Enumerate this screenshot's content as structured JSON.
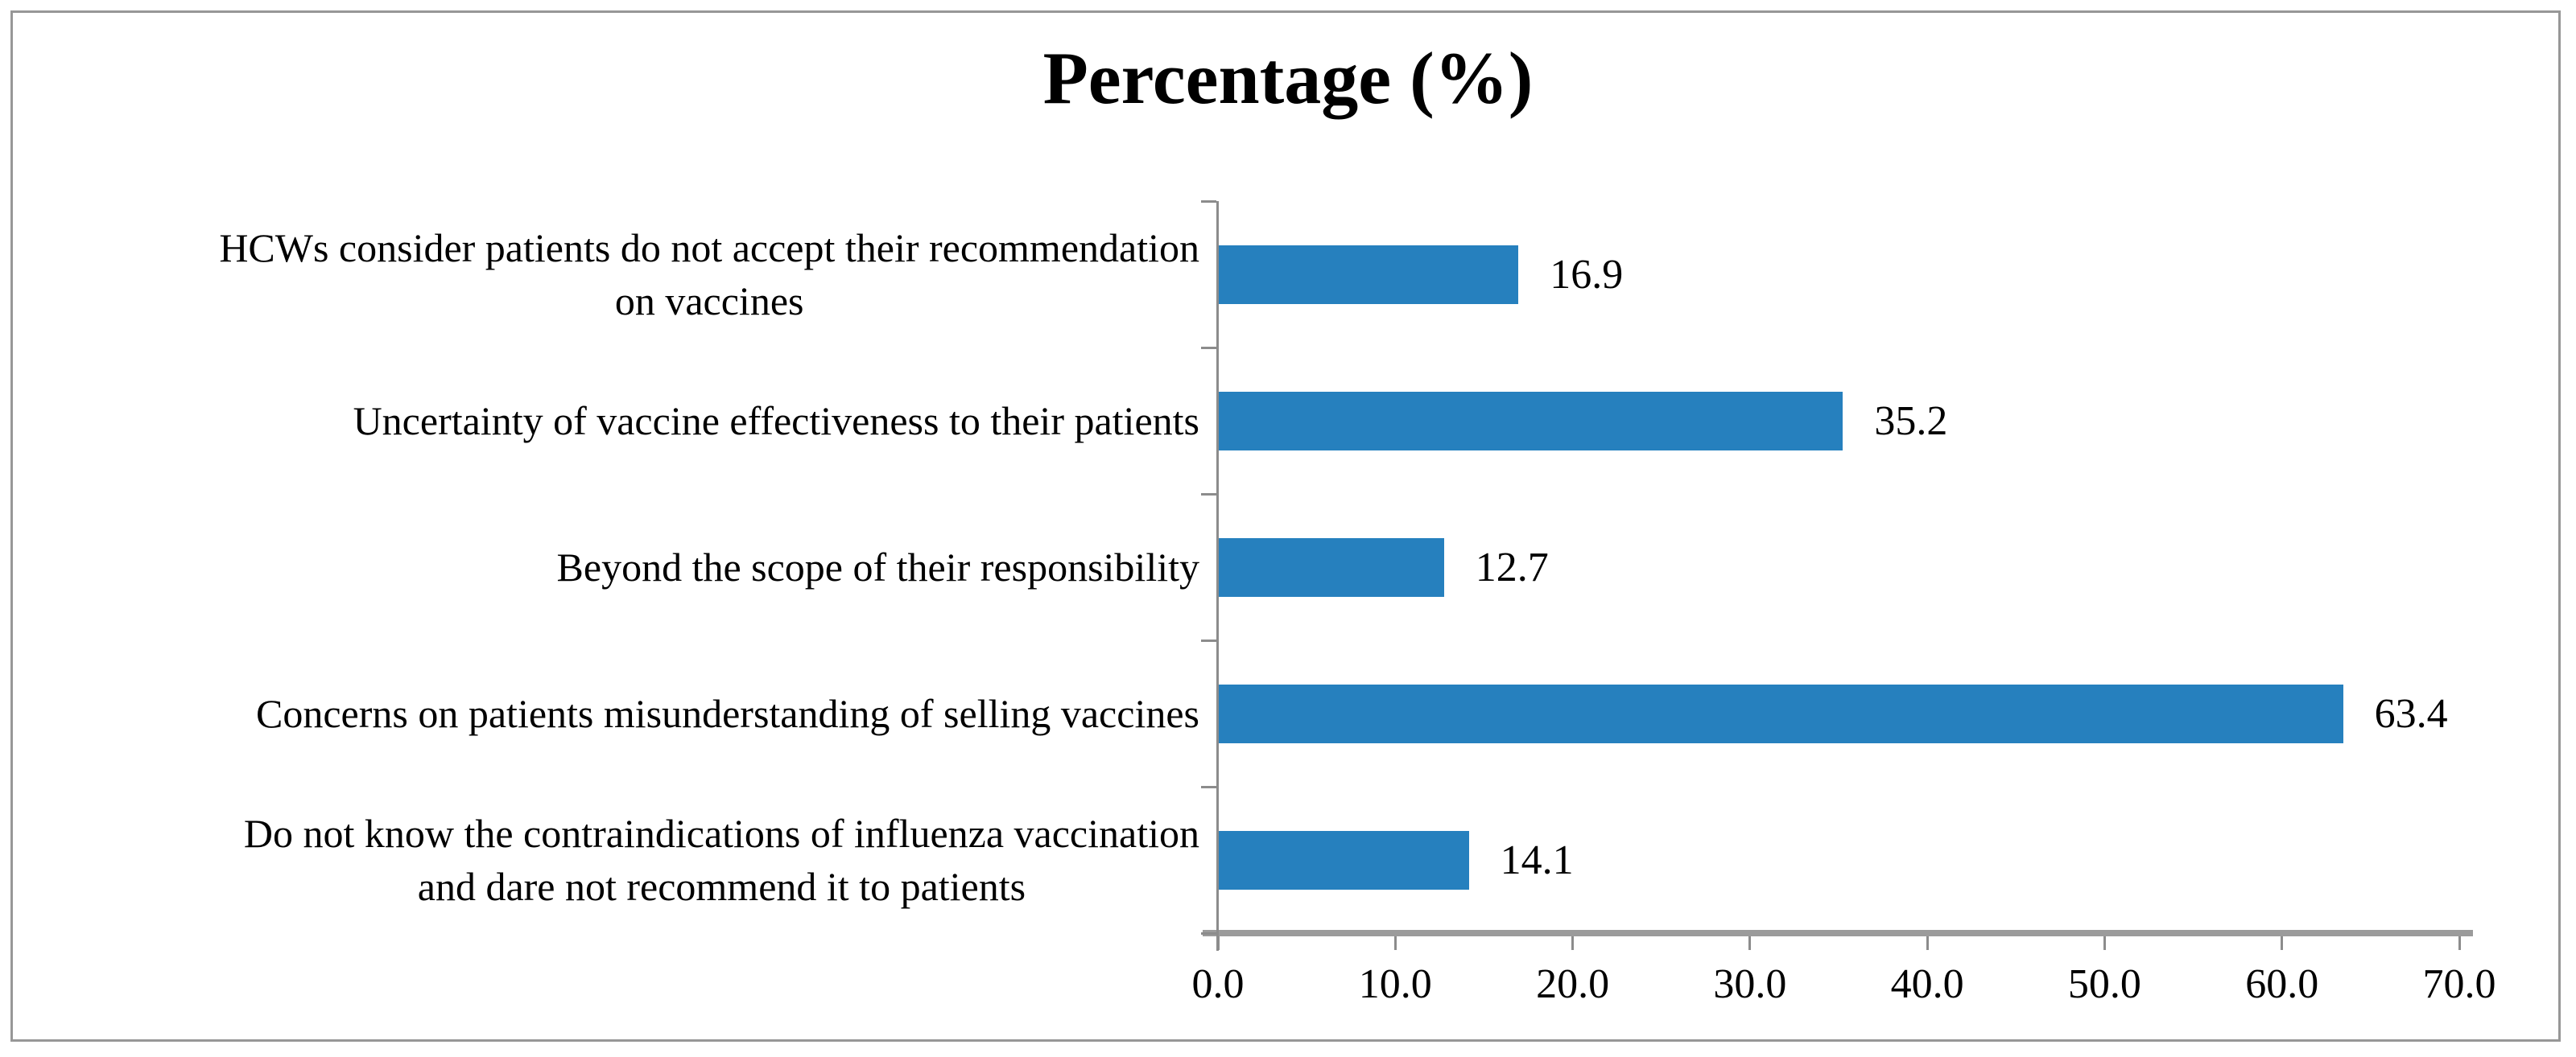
{
  "figure": {
    "background_color": "#ffffff",
    "border_color": "#979797"
  },
  "chart_data": {
    "type": "bar",
    "orientation": "horizontal",
    "title": "Percentage (%)",
    "xlabel": "",
    "ylabel": "",
    "xlim": [
      0,
      70
    ],
    "x_tick_labels": [
      "0.0",
      "10.0",
      "20.0",
      "30.0",
      "40.0",
      "50.0",
      "60.0",
      "70.0"
    ],
    "x_tick_values": [
      0,
      10,
      20,
      30,
      40,
      50,
      60,
      70
    ],
    "grid": false,
    "legend": "none",
    "data_labels_position": "outside-end",
    "bar_color": "#2680be",
    "axis_color": "#8c8c8c",
    "categories": [
      [
        "HCWs consider patients do not accept their recommendation",
        "on vaccines"
      ],
      [
        "Uncertainty of vaccine effectiveness to their patients"
      ],
      [
        "Beyond the scope of their responsibility"
      ],
      [
        "Concerns on patients misunderstanding of selling vaccines"
      ],
      [
        "Do not know the contraindications of influenza vaccination",
        "and dare not recommend it to patients"
      ]
    ],
    "values": [
      16.9,
      35.2,
      12.7,
      63.4,
      14.1
    ],
    "value_labels": [
      "16.9",
      "35.2",
      "12.7",
      "63.4",
      "14.1"
    ]
  }
}
